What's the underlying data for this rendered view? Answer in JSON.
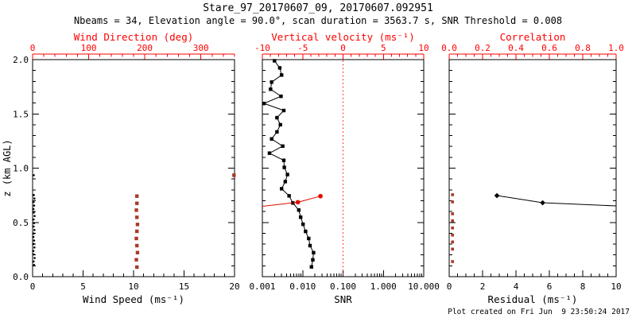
{
  "header": {
    "title": "Stare_97_20170607_09, 20170607.092951",
    "subtitle": "Nbeams = 34, Elevation angle = 90.0°, scan duration = 3563.7 s, SNR Threshold = 0.008"
  },
  "footer": {
    "created": "Plot created on Fri Jun  9 23:50:24 2017"
  },
  "colors": {
    "black": "#000000",
    "axis_red": "#ff0000",
    "marker_red": "#a83a28",
    "line_red": "#e01000"
  },
  "y_axis": {
    "label": "z (km AGL)",
    "lim": [
      0,
      2
    ],
    "tick_values": [
      0,
      0.5,
      1.0,
      1.5,
      2.0
    ],
    "tick_labels": [
      "0.0",
      "0.5",
      "1.0",
      "1.5",
      "2.0"
    ],
    "minor": 0.1
  },
  "chart_data": [
    {
      "type": "scatter",
      "name": "wind",
      "bottom_axis": {
        "label": "Wind Speed (ms⁻¹)",
        "scale": "linear",
        "lim": [
          0,
          20
        ],
        "tick_values": [
          0,
          5,
          10,
          15,
          20
        ],
        "tick_labels": [
          "0",
          "5",
          "10",
          "15",
          "20"
        ],
        "minor": 1
      },
      "top_axis": {
        "label": "Wind Direction (deg)",
        "scale": "linear",
        "lim": [
          0,
          360
        ],
        "tick_values": [
          0,
          100,
          200,
          300
        ],
        "tick_labels": [
          "0",
          "100",
          "200",
          "300"
        ],
        "minor": 20
      },
      "series": [
        {
          "name": "wind-speed",
          "axis": "bottom",
          "color": "black",
          "marker": "dot",
          "line": false,
          "points": [
            [
              0.15,
              0.108
            ],
            [
              0.1,
              0.14
            ],
            [
              0.2,
              0.172
            ],
            [
              0.12,
              0.205
            ],
            [
              0.08,
              0.237
            ],
            [
              0.18,
              0.269
            ],
            [
              0.1,
              0.301
            ],
            [
              0.15,
              0.333
            ],
            [
              0.08,
              0.366
            ],
            [
              0.12,
              0.398
            ],
            [
              0.18,
              0.43
            ],
            [
              0.1,
              0.462
            ],
            [
              0.15,
              0.494
            ],
            [
              0.1,
              0.527
            ],
            [
              0.2,
              0.559
            ],
            [
              0.12,
              0.591
            ],
            [
              0.08,
              0.623
            ],
            [
              0.15,
              0.655
            ],
            [
              0.1,
              0.688
            ],
            [
              0.18,
              0.72
            ],
            [
              0.12,
              0.752
            ],
            [
              0.12,
              0.935
            ]
          ]
        },
        {
          "name": "wind-direction",
          "axis": "top",
          "color": "marker_red",
          "marker": "square",
          "line": false,
          "points": [
            [
              186,
              0.088
            ],
            [
              185,
              0.156
            ],
            [
              187,
              0.222
            ],
            [
              186,
              0.286
            ],
            [
              185,
              0.352
            ],
            [
              186,
              0.418
            ],
            [
              187,
              0.481
            ],
            [
              186,
              0.547
            ],
            [
              185,
              0.613
            ],
            [
              186,
              0.676
            ],
            [
              186,
              0.742
            ],
            [
              359,
              0.935
            ]
          ]
        }
      ]
    },
    {
      "type": "line",
      "name": "snr",
      "bottom_axis": {
        "label": "SNR",
        "scale": "log",
        "lim": [
          0.001,
          10
        ],
        "tick_values": [
          0.001,
          0.01,
          0.1,
          1,
          10
        ],
        "tick_labels": [
          "0.001",
          "0.010",
          "0.100",
          "1.000",
          "10.000"
        ]
      },
      "top_axis": {
        "label": "Vertical velocity (ms⁻¹)",
        "scale": "linear",
        "lim": [
          -10,
          10
        ],
        "tick_values": [
          -10,
          -5,
          0,
          5,
          10
        ],
        "tick_labels": [
          "-10",
          "-5",
          "0",
          "5",
          "10"
        ],
        "minor": 1
      },
      "zero_line": {
        "axis": "top",
        "value": 0,
        "style": "dotted",
        "color": "axis_red"
      },
      "series": [
        {
          "name": "snr-profile",
          "axis": "bottom",
          "color": "black",
          "marker": "square",
          "line": true,
          "points": [
            [
              0.0165,
              0.09
            ],
            [
              0.0178,
              0.155
            ],
            [
              0.0186,
              0.221
            ],
            [
              0.0152,
              0.286
            ],
            [
              0.0141,
              0.352
            ],
            [
              0.0118,
              0.417
            ],
            [
              0.0102,
              0.483
            ],
            [
              0.0089,
              0.548
            ],
            [
              0.008,
              0.614
            ],
            [
              0.0057,
              0.679
            ],
            [
              0.0046,
              0.745
            ],
            [
              0.003,
              0.81
            ],
            [
              0.0037,
              0.876
            ],
            [
              0.0042,
              0.941
            ],
            [
              0.0035,
              1.007
            ],
            [
              0.0034,
              1.072
            ],
            [
              0.0015,
              1.138
            ],
            [
              0.0032,
              1.203
            ],
            [
              0.0017,
              1.269
            ],
            [
              0.0023,
              1.334
            ],
            [
              0.0028,
              1.4
            ],
            [
              0.0023,
              1.465
            ],
            [
              0.0034,
              1.531
            ],
            [
              0.0011,
              1.596
            ],
            [
              0.0029,
              1.662
            ],
            [
              0.0016,
              1.727
            ],
            [
              0.0017,
              1.793
            ],
            [
              0.003,
              1.858
            ],
            [
              0.0027,
              1.924
            ],
            [
              0.002,
              1.989
            ]
          ]
        },
        {
          "name": "vertical-velocity",
          "axis": "top",
          "color": "line_red",
          "marker": "circle",
          "line": true,
          "points": [
            [
              -10,
              0.648
            ],
            [
              -5.6,
              0.686
            ],
            [
              -2.8,
              0.742
            ]
          ],
          "marker_points": [
            [
              -5.6,
              0.686
            ],
            [
              -2.8,
              0.742
            ]
          ]
        }
      ]
    },
    {
      "type": "line",
      "name": "residual",
      "bottom_axis": {
        "label": "Residual (ms⁻¹)",
        "scale": "linear",
        "lim": [
          0,
          10
        ],
        "tick_values": [
          0,
          2,
          4,
          6,
          8,
          10
        ],
        "tick_labels": [
          "0",
          "2",
          "4",
          "6",
          "8",
          "10"
        ],
        "minor": 0.5
      },
      "top_axis": {
        "label": "Correlation",
        "scale": "linear",
        "lim": [
          0,
          1
        ],
        "tick_values": [
          0,
          0.2,
          0.4,
          0.6,
          0.8,
          1.0
        ],
        "tick_labels": [
          "0.0",
          "0.2",
          "0.4",
          "0.6",
          "0.8",
          "1.0"
        ],
        "minor": 0.05
      },
      "series": [
        {
          "name": "residual-fit",
          "axis": "bottom",
          "color": "black",
          "marker": "diamond",
          "line": true,
          "points": [
            [
              2.86,
              0.747
            ],
            [
              5.6,
              0.681
            ],
            [
              10.0,
              0.652
            ]
          ],
          "marker_points": [
            [
              2.86,
              0.747
            ],
            [
              5.6,
              0.681
            ]
          ]
        },
        {
          "name": "correlation",
          "axis": "top",
          "color": "marker_red",
          "marker": "square",
          "line": false,
          "points": [
            [
              0.02,
              0.755
            ],
            [
              0.02,
              0.689
            ],
            [
              0.02,
              0.579
            ],
            [
              0.02,
              0.515
            ],
            [
              0.02,
              0.449
            ],
            [
              0.02,
              0.383
            ],
            [
              0.02,
              0.32
            ],
            [
              0.02,
              0.254
            ],
            [
              0.02,
              0.139
            ]
          ]
        }
      ]
    }
  ]
}
